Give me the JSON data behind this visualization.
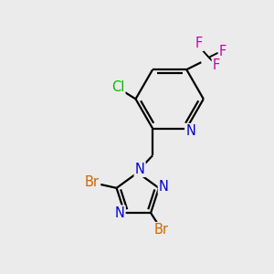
{
  "background_color": "#ebebeb",
  "figure_size": [
    3.0,
    3.0
  ],
  "dpi": 100,
  "atom_colors": {
    "C": "#000000",
    "N": "#0000cc",
    "Br": "#cc6600",
    "Cl": "#00bb00",
    "F": "#cc00aa",
    "H": "#000000"
  },
  "bond_color": "#000000",
  "bond_width": 1.6,
  "font_size_atom": 10.5
}
